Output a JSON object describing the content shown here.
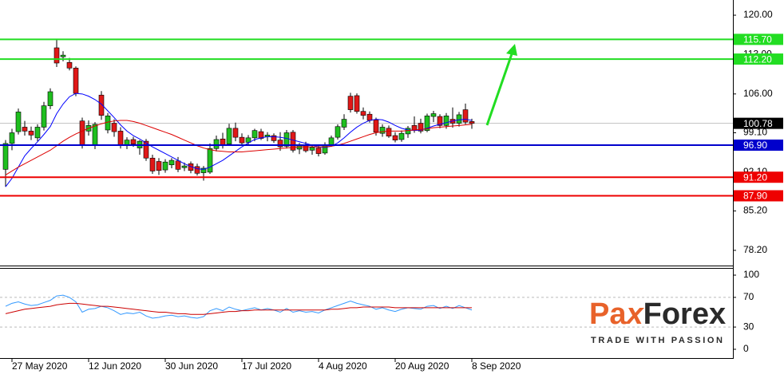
{
  "chart_data": [
    {
      "type": "candlestick",
      "categories": [
        null,
        "27 May 2020",
        null,
        null,
        null,
        null,
        null,
        null,
        null,
        null,
        null,
        null,
        null,
        "12 Jun 2020",
        null,
        null,
        null,
        null,
        null,
        null,
        null,
        null,
        null,
        null,
        null,
        "30 Jun 2020",
        null,
        null,
        null,
        null,
        null,
        null,
        null,
        null,
        null,
        null,
        null,
        "17 Jul 2020",
        null,
        null,
        null,
        null,
        null,
        null,
        null,
        null,
        null,
        null,
        null,
        "4 Aug 2020",
        null,
        null,
        null,
        null,
        null,
        null,
        null,
        null,
        null,
        null,
        null,
        "20 Aug 2020",
        null,
        null,
        null,
        null,
        null,
        null,
        null,
        null,
        null,
        null,
        null,
        "8 Sep 2020"
      ],
      "open": [
        92.6,
        97.2,
        99.3,
        100.1,
        99.4,
        98.2,
        100.1,
        103.9,
        114.2,
        112.6,
        111.6,
        110.6,
        101.2,
        99.4,
        96.9,
        105.8,
        99.6,
        100.8,
        99.4,
        96.9,
        97.9,
        96.4,
        97.6,
        94.6,
        94.0,
        92.5,
        93.4,
        94.1,
        92.9,
        93.6,
        93.1,
        92.0,
        92.1,
        96.3,
        98.0,
        97.1,
        99.9,
        98.3,
        97.4,
        98.2,
        99.3,
        98.4,
        98.6,
        97.8,
        96.7,
        99.2,
        96.2,
        96.8,
        96.0,
        96.4,
        95.5,
        97.0,
        98.3,
        100.1,
        105.6,
        105.7,
        102.9,
        102.4,
        101.4,
        99.0,
        99.9,
        98.6,
        97.9,
        98.9,
        100.4,
        100.8,
        99.5,
        102.0,
        102.0,
        100.4,
        101.5,
        100.8,
        103.2,
        101.1
      ],
      "high": [
        97.8,
        99.8,
        103.4,
        101.2,
        100.2,
        100.6,
        104.6,
        107.0,
        115.7,
        113.6,
        112.4,
        110.9,
        101.8,
        101.3,
        101.0,
        106.5,
        102.6,
        101.5,
        100.1,
        98.3,
        98.4,
        97.8,
        98.0,
        95.2,
        94.6,
        94.4,
        94.6,
        94.8,
        93.8,
        94.0,
        93.6,
        93.2,
        97.2,
        98.6,
        99.1,
        100.7,
        100.9,
        99.0,
        98.7,
        99.8,
        99.8,
        99.2,
        99.0,
        99.2,
        99.6,
        99.6,
        97.3,
        97.5,
        96.9,
        97.0,
        97.4,
        98.6,
        100.6,
        102.4,
        106.2,
        106.1,
        103.6,
        102.9,
        101.8,
        100.6,
        100.4,
        99.2,
        99.5,
        100.3,
        102.0,
        101.6,
        102.5,
        103.0,
        102.4,
        102.6,
        103.6,
        102.8,
        104.3,
        101.6
      ],
      "low": [
        89.5,
        96.0,
        98.8,
        98.6,
        97.8,
        97.6,
        99.5,
        103.3,
        110.8,
        111.8,
        110.2,
        105.6,
        96.3,
        98.6,
        96.2,
        101.4,
        99.0,
        98.4,
        96.3,
        96.2,
        96.6,
        95.2,
        94.1,
        91.8,
        91.6,
        92.0,
        92.8,
        92.1,
        92.3,
        91.9,
        91.5,
        90.6,
        91.8,
        95.8,
        96.3,
        96.8,
        97.6,
        96.8,
        96.9,
        97.6,
        97.8,
        97.6,
        97.3,
        95.9,
        96.3,
        95.6,
        95.3,
        95.6,
        95.2,
        94.9,
        95.2,
        96.6,
        97.9,
        99.6,
        102.7,
        102.5,
        101.5,
        100.9,
        98.6,
        98.4,
        98.2,
        97.4,
        97.5,
        98.2,
        99.1,
        99.0,
        99.2,
        101.0,
        99.9,
        99.8,
        100.0,
        100.2,
        100.6,
        99.8
      ],
      "close": [
        97.2,
        99.1,
        102.8,
        99.4,
        98.7,
        100.1,
        103.9,
        106.4,
        111.5,
        112.9,
        110.6,
        106.1,
        96.9,
        100.4,
        100.6,
        102.2,
        102.1,
        99.3,
        96.8,
        97.8,
        97.1,
        97.6,
        94.6,
        92.3,
        92.4,
        93.9,
        94.2,
        92.6,
        93.2,
        92.4,
        91.9,
        92.8,
        96.3,
        97.9,
        96.8,
        99.9,
        98.3,
        97.3,
        98.2,
        99.5,
        98.1,
        98.7,
        97.7,
        96.6,
        99.1,
        96.0,
        96.9,
        95.9,
        96.5,
        95.4,
        97.0,
        98.2,
        100.2,
        101.5,
        103.2,
        102.9,
        102.2,
        101.3,
        99.2,
        100.1,
        98.5,
        97.8,
        99.0,
        99.9,
        99.5,
        99.4,
        102.1,
        102.5,
        100.4,
        102.1,
        100.8,
        102.3,
        101.0,
        100.78
      ],
      "up_color": "#1fbf1f",
      "down_color": "#e01818",
      "overlays": [
        {
          "color": "#0000ff",
          "values": [
            89.5,
            91,
            93,
            95,
            96.3,
            97.5,
            98.8,
            100.2,
            102.5,
            104.2,
            105.5,
            106.1,
            106.0,
            105.6,
            105.0,
            104.2,
            103.0,
            101.8,
            100.5,
            99.4,
            98.6,
            98.0,
            97.3,
            96.6,
            96.0,
            95.4,
            94.8,
            94.2,
            93.6,
            93.1,
            92.7,
            92.6,
            93.0,
            93.6,
            94.2,
            95.0,
            95.8,
            96.6,
            97.3,
            97.9,
            98.2,
            98.4,
            98.4,
            98.3,
            98.1,
            97.8,
            97.5,
            97.2,
            96.9,
            96.6,
            96.5,
            96.7,
            97.3,
            98.2,
            99.2,
            100.1,
            100.8,
            101.3,
            101.5,
            101.4,
            101.0,
            100.4,
            99.9,
            99.6,
            99.5,
            99.6,
            99.9,
            100.3,
            100.6,
            100.9,
            101.2,
            101.4,
            101.5,
            101.3
          ]
        },
        {
          "color": "#dd0000",
          "values": [
            91.6,
            92.3,
            93.0,
            93.6,
            94.2,
            94.8,
            95.4,
            96.0,
            96.8,
            97.6,
            98.3,
            98.9,
            99.4,
            99.9,
            100.3,
            100.7,
            101.0,
            101.2,
            101.3,
            101.3,
            101.1,
            100.8,
            100.4,
            100.0,
            99.6,
            99.2,
            98.8,
            98.3,
            97.8,
            97.3,
            96.8,
            96.4,
            96.1,
            95.9,
            95.8,
            95.7,
            95.7,
            95.7,
            95.8,
            95.9,
            96.0,
            96.1,
            96.2,
            96.3,
            96.4,
            96.5,
            96.6,
            96.6,
            96.6,
            96.6,
            96.6,
            96.7,
            96.9,
            97.2,
            97.6,
            98.0,
            98.4,
            98.8,
            99.1,
            99.3,
            99.4,
            99.4,
            99.4,
            99.5,
            99.6,
            99.7,
            99.8,
            100.0,
            100.1,
            100.2,
            100.3,
            100.4,
            100.5,
            100.6
          ]
        }
      ],
      "ylim": [
        75.5,
        122.7
      ],
      "yticks": [
        {
          "value": 120,
          "label": "120.00"
        },
        {
          "value": 113,
          "label": "113.00"
        },
        {
          "value": 106,
          "label": "106.00"
        },
        {
          "value": 99.1,
          "label": "99.10"
        },
        {
          "value": 92.1,
          "label": "92.10"
        },
        {
          "value": 85.2,
          "label": "85.20"
        },
        {
          "value": 78.2,
          "label": "78.20"
        }
      ],
      "levels": [
        {
          "value": 115.7,
          "label": "115.70",
          "color": "#22dd22"
        },
        {
          "value": 112.2,
          "label": "112.20",
          "color": "#22dd22"
        },
        {
          "value": 96.9,
          "label": "96.90",
          "color": "#0000cc"
        },
        {
          "value": 91.2,
          "label": "91.20",
          "color": "#ee0000"
        },
        {
          "value": 87.9,
          "label": "87.90",
          "color": "#ee0000"
        }
      ],
      "current_price": {
        "value": 100.78,
        "label": "100.78"
      }
    },
    {
      "type": "line",
      "series": [
        {
          "color": "#3399ff",
          "values": [
            58,
            62,
            64,
            61,
            59,
            60,
            63,
            66,
            72,
            73,
            70,
            64,
            50,
            54,
            55,
            58,
            56,
            52,
            47,
            49,
            48,
            50,
            45,
            42,
            43,
            45,
            46,
            44,
            45,
            43,
            42,
            44,
            52,
            55,
            52,
            57,
            54,
            52,
            54,
            56,
            53,
            55,
            53,
            50,
            55,
            50,
            52,
            50,
            51,
            49,
            53,
            56,
            59,
            62,
            65,
            62,
            60,
            58,
            54,
            56,
            53,
            51,
            54,
            56,
            55,
            54,
            58,
            59,
            55,
            58,
            55,
            59,
            56,
            53
          ]
        },
        {
          "color": "#cc0000",
          "values": [
            48,
            50,
            52,
            54,
            55,
            56,
            57,
            58,
            60,
            61,
            62,
            62,
            61,
            60,
            59,
            58,
            58,
            57,
            56,
            55,
            54,
            53,
            52,
            51,
            50,
            50,
            49,
            48,
            48,
            47,
            47,
            47,
            48,
            49,
            50,
            51,
            51,
            52,
            52,
            53,
            53,
            53,
            53,
            53,
            53,
            53,
            53,
            53,
            53,
            53,
            53,
            54,
            54,
            55,
            56,
            56,
            57,
            57,
            57,
            57,
            57,
            56,
            56,
            56,
            56,
            56,
            56,
            56,
            56,
            56,
            56,
            56,
            56,
            56
          ]
        }
      ],
      "ylim": [
        -12.9,
        109.7
      ],
      "yticks": [
        100,
        70,
        30,
        0
      ],
      "levels": [
        70,
        30
      ]
    }
  ],
  "logo": {
    "parts": [
      "Pa",
      "x",
      "Forex"
    ],
    "tagline": "TRADE WITH PASSION"
  }
}
